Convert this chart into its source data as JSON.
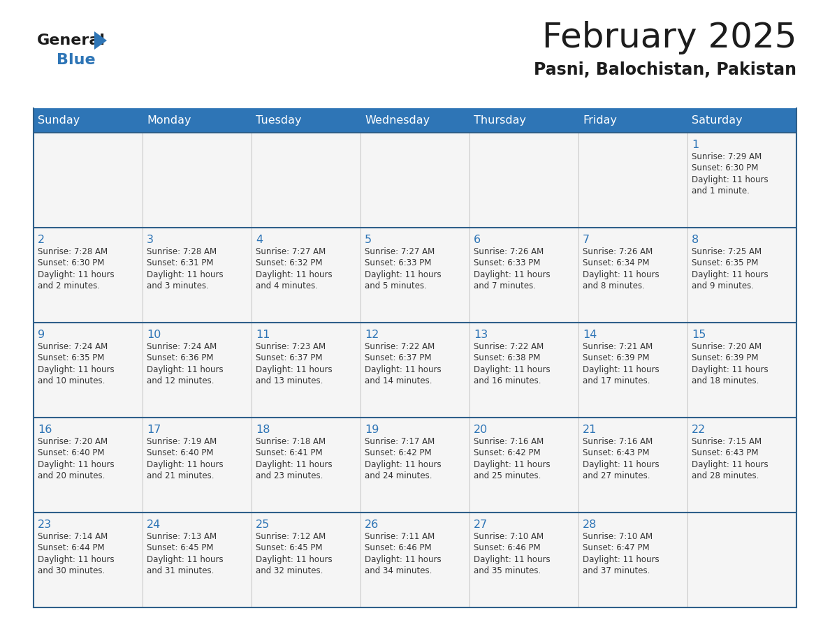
{
  "title": "February 2025",
  "subtitle": "Pasni, Balochistan, Pakistan",
  "header_bg": "#2E75B6",
  "header_text_color": "#FFFFFF",
  "cell_bg": "#F5F5F5",
  "day_number_color": "#2E75B6",
  "text_color": "#333333",
  "border_color": "#2E5F8A",
  "days_of_week": [
    "Sunday",
    "Monday",
    "Tuesday",
    "Wednesday",
    "Thursday",
    "Friday",
    "Saturday"
  ],
  "weeks": [
    [
      {
        "day": null,
        "info": null
      },
      {
        "day": null,
        "info": null
      },
      {
        "day": null,
        "info": null
      },
      {
        "day": null,
        "info": null
      },
      {
        "day": null,
        "info": null
      },
      {
        "day": null,
        "info": null
      },
      {
        "day": 1,
        "info": "Sunrise: 7:29 AM\nSunset: 6:30 PM\nDaylight: 11 hours\nand 1 minute."
      }
    ],
    [
      {
        "day": 2,
        "info": "Sunrise: 7:28 AM\nSunset: 6:30 PM\nDaylight: 11 hours\nand 2 minutes."
      },
      {
        "day": 3,
        "info": "Sunrise: 7:28 AM\nSunset: 6:31 PM\nDaylight: 11 hours\nand 3 minutes."
      },
      {
        "day": 4,
        "info": "Sunrise: 7:27 AM\nSunset: 6:32 PM\nDaylight: 11 hours\nand 4 minutes."
      },
      {
        "day": 5,
        "info": "Sunrise: 7:27 AM\nSunset: 6:33 PM\nDaylight: 11 hours\nand 5 minutes."
      },
      {
        "day": 6,
        "info": "Sunrise: 7:26 AM\nSunset: 6:33 PM\nDaylight: 11 hours\nand 7 minutes."
      },
      {
        "day": 7,
        "info": "Sunrise: 7:26 AM\nSunset: 6:34 PM\nDaylight: 11 hours\nand 8 minutes."
      },
      {
        "day": 8,
        "info": "Sunrise: 7:25 AM\nSunset: 6:35 PM\nDaylight: 11 hours\nand 9 minutes."
      }
    ],
    [
      {
        "day": 9,
        "info": "Sunrise: 7:24 AM\nSunset: 6:35 PM\nDaylight: 11 hours\nand 10 minutes."
      },
      {
        "day": 10,
        "info": "Sunrise: 7:24 AM\nSunset: 6:36 PM\nDaylight: 11 hours\nand 12 minutes."
      },
      {
        "day": 11,
        "info": "Sunrise: 7:23 AM\nSunset: 6:37 PM\nDaylight: 11 hours\nand 13 minutes."
      },
      {
        "day": 12,
        "info": "Sunrise: 7:22 AM\nSunset: 6:37 PM\nDaylight: 11 hours\nand 14 minutes."
      },
      {
        "day": 13,
        "info": "Sunrise: 7:22 AM\nSunset: 6:38 PM\nDaylight: 11 hours\nand 16 minutes."
      },
      {
        "day": 14,
        "info": "Sunrise: 7:21 AM\nSunset: 6:39 PM\nDaylight: 11 hours\nand 17 minutes."
      },
      {
        "day": 15,
        "info": "Sunrise: 7:20 AM\nSunset: 6:39 PM\nDaylight: 11 hours\nand 18 minutes."
      }
    ],
    [
      {
        "day": 16,
        "info": "Sunrise: 7:20 AM\nSunset: 6:40 PM\nDaylight: 11 hours\nand 20 minutes."
      },
      {
        "day": 17,
        "info": "Sunrise: 7:19 AM\nSunset: 6:40 PM\nDaylight: 11 hours\nand 21 minutes."
      },
      {
        "day": 18,
        "info": "Sunrise: 7:18 AM\nSunset: 6:41 PM\nDaylight: 11 hours\nand 23 minutes."
      },
      {
        "day": 19,
        "info": "Sunrise: 7:17 AM\nSunset: 6:42 PM\nDaylight: 11 hours\nand 24 minutes."
      },
      {
        "day": 20,
        "info": "Sunrise: 7:16 AM\nSunset: 6:42 PM\nDaylight: 11 hours\nand 25 minutes."
      },
      {
        "day": 21,
        "info": "Sunrise: 7:16 AM\nSunset: 6:43 PM\nDaylight: 11 hours\nand 27 minutes."
      },
      {
        "day": 22,
        "info": "Sunrise: 7:15 AM\nSunset: 6:43 PM\nDaylight: 11 hours\nand 28 minutes."
      }
    ],
    [
      {
        "day": 23,
        "info": "Sunrise: 7:14 AM\nSunset: 6:44 PM\nDaylight: 11 hours\nand 30 minutes."
      },
      {
        "day": 24,
        "info": "Sunrise: 7:13 AM\nSunset: 6:45 PM\nDaylight: 11 hours\nand 31 minutes."
      },
      {
        "day": 25,
        "info": "Sunrise: 7:12 AM\nSunset: 6:45 PM\nDaylight: 11 hours\nand 32 minutes."
      },
      {
        "day": 26,
        "info": "Sunrise: 7:11 AM\nSunset: 6:46 PM\nDaylight: 11 hours\nand 34 minutes."
      },
      {
        "day": 27,
        "info": "Sunrise: 7:10 AM\nSunset: 6:46 PM\nDaylight: 11 hours\nand 35 minutes."
      },
      {
        "day": 28,
        "info": "Sunrise: 7:10 AM\nSunset: 6:47 PM\nDaylight: 11 hours\nand 37 minutes."
      },
      {
        "day": null,
        "info": null
      }
    ]
  ]
}
